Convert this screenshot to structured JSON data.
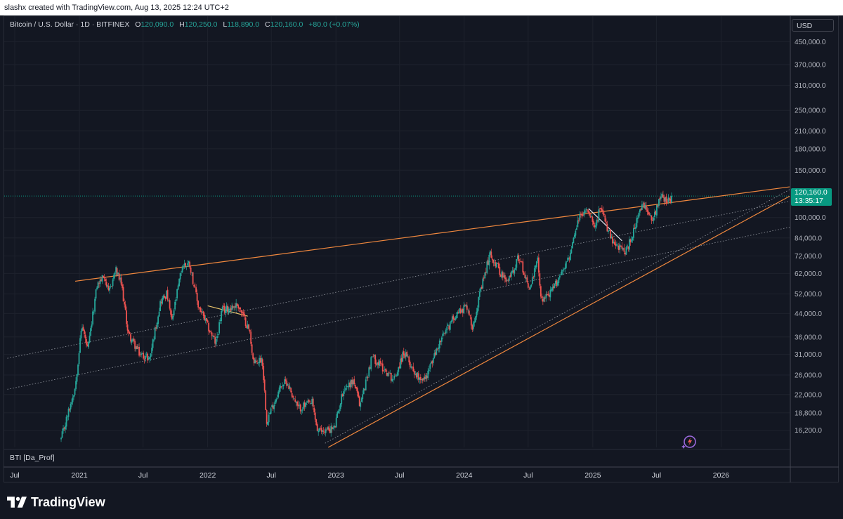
{
  "header": {
    "attribution": "slashx created with TradingView.com, Aug 13, 2025 12:24 UTC+2"
  },
  "legend": {
    "symbol": "Bitcoin / U.S. Dollar · 1D · BITFINEX",
    "open_label": "O",
    "open": "120,090.0",
    "high_label": "H",
    "high": "120,250.0",
    "low_label": "L",
    "low": "118,890.0",
    "close_label": "C",
    "close": "120,160.0",
    "change": "+80.0 (+0.07%)"
  },
  "indicator": {
    "label": "BTI [Da_Prof]"
  },
  "price_axis": {
    "currency": "USD",
    "current_price": "120,160.0",
    "countdown": "13:35:17"
  },
  "brand": {
    "name": "TradingView"
  },
  "colors": {
    "background": "#131722",
    "up": "#26a69a",
    "down": "#ef5350",
    "trendline_orange": "#f0883e",
    "trendline_yellow": "#e8c46b",
    "price_tag": "#089981",
    "dotted": "#b2b5be"
  },
  "chart_data": {
    "type": "candlestick",
    "title": "Bitcoin / U.S. Dollar · 1D · BITFINEX",
    "y_scale": "log",
    "ylim": [
      14000,
      560000
    ],
    "xlim": [
      "2020-06-01",
      "2026-07-15"
    ],
    "y_ticks": [
      {
        "value": 450000,
        "label": "450,000.0"
      },
      {
        "value": 370000,
        "label": "370,000.0"
      },
      {
        "value": 310000,
        "label": "310,000.0"
      },
      {
        "value": 250000,
        "label": "250,000.0"
      },
      {
        "value": 210000,
        "label": "210,000.0"
      },
      {
        "value": 180000,
        "label": "180,000.0"
      },
      {
        "value": 150000,
        "label": "150,000.0"
      },
      {
        "value": 100000,
        "label": "100,000.0"
      },
      {
        "value": 84000,
        "label": "84,000.0"
      },
      {
        "value": 72000,
        "label": "72,000.0"
      },
      {
        "value": 62000,
        "label": "62,000.0"
      },
      {
        "value": 52000,
        "label": "52,000.0"
      },
      {
        "value": 44000,
        "label": "44,000.0"
      },
      {
        "value": 36000,
        "label": "36,000.0"
      },
      {
        "value": 31000,
        "label": "31,000.0"
      },
      {
        "value": 26000,
        "label": "26,000.0"
      },
      {
        "value": 22000,
        "label": "22,000.0"
      },
      {
        "value": 18800,
        "label": "18,800.0"
      },
      {
        "value": 16200,
        "label": "16,200.0"
      }
    ],
    "x_ticks": [
      {
        "date": "2020-07-01",
        "label": "Jul"
      },
      {
        "date": "2021-01-01",
        "label": "2021"
      },
      {
        "date": "2021-07-01",
        "label": "Jul"
      },
      {
        "date": "2022-01-01",
        "label": "2022"
      },
      {
        "date": "2022-07-01",
        "label": "Jul"
      },
      {
        "date": "2023-01-01",
        "label": "2023"
      },
      {
        "date": "2023-07-01",
        "label": "Jul"
      },
      {
        "date": "2024-01-01",
        "label": "2024"
      },
      {
        "date": "2024-07-01",
        "label": "Jul"
      },
      {
        "date": "2025-01-01",
        "label": "2025"
      },
      {
        "date": "2025-07-01",
        "label": "Jul"
      },
      {
        "date": "2026-01-01",
        "label": "2026"
      }
    ],
    "price_path": [
      [
        "2020-11-10",
        15000
      ],
      [
        "2020-12-01",
        19000
      ],
      [
        "2020-12-20",
        23500
      ],
      [
        "2021-01-08",
        40000
      ],
      [
        "2021-01-25",
        32000
      ],
      [
        "2021-02-20",
        56000
      ],
      [
        "2021-03-13",
        61000
      ],
      [
        "2021-03-25",
        52000
      ],
      [
        "2021-04-14",
        64000
      ],
      [
        "2021-05-01",
        56000
      ],
      [
        "2021-05-20",
        37000
      ],
      [
        "2021-06-22",
        31000
      ],
      [
        "2021-07-20",
        30000
      ],
      [
        "2021-08-20",
        49000
      ],
      [
        "2021-09-07",
        52000
      ],
      [
        "2021-09-21",
        41000
      ],
      [
        "2021-10-20",
        66000
      ],
      [
        "2021-11-10",
        68000
      ],
      [
        "2021-12-05",
        47000
      ],
      [
        "2022-01-24",
        34000
      ],
      [
        "2022-02-10",
        45000
      ],
      [
        "2022-03-28",
        47500
      ],
      [
        "2022-04-30",
        38000
      ],
      [
        "2022-05-12",
        28500
      ],
      [
        "2022-06-05",
        30000
      ],
      [
        "2022-06-18",
        17600
      ],
      [
        "2022-07-30",
        24000
      ],
      [
        "2022-08-15",
        24500
      ],
      [
        "2022-09-15",
        19500
      ],
      [
        "2022-10-25",
        20500
      ],
      [
        "2022-11-10",
        16000
      ],
      [
        "2022-12-28",
        16500
      ],
      [
        "2023-01-22",
        23000
      ],
      [
        "2023-02-20",
        24800
      ],
      [
        "2023-03-10",
        20000
      ],
      [
        "2023-04-14",
        30500
      ],
      [
        "2023-06-15",
        25000
      ],
      [
        "2023-07-13",
        31500
      ],
      [
        "2023-08-18",
        26000
      ],
      [
        "2023-09-11",
        25000
      ],
      [
        "2023-10-24",
        34500
      ],
      [
        "2023-12-08",
        44000
      ],
      [
        "2024-01-10",
        47000
      ],
      [
        "2024-01-23",
        39000
      ],
      [
        "2024-03-14",
        73500
      ],
      [
        "2024-05-01",
        57000
      ],
      [
        "2024-06-05",
        71500
      ],
      [
        "2024-07-05",
        54000
      ],
      [
        "2024-07-29",
        70000
      ],
      [
        "2024-08-05",
        49500
      ],
      [
        "2024-09-06",
        53000
      ],
      [
        "2024-10-29",
        73000
      ],
      [
        "2024-11-22",
        99500
      ],
      [
        "2024-12-17",
        108000
      ],
      [
        "2025-01-10",
        93000
      ],
      [
        "2025-01-21",
        109500
      ],
      [
        "2025-02-28",
        79000
      ],
      [
        "2025-04-07",
        75000
      ],
      [
        "2025-05-22",
        111000
      ],
      [
        "2025-06-22",
        99000
      ],
      [
        "2025-07-14",
        123000
      ],
      [
        "2025-08-01",
        113000
      ],
      [
        "2025-08-13",
        120160
      ]
    ],
    "trendlines": [
      {
        "style": "solid",
        "color": "orange",
        "from": [
          "2020-12-20",
          58000
        ],
        "to": [
          "2026-07-15",
          130000
        ]
      },
      {
        "style": "solid",
        "color": "orange",
        "from": [
          "2022-12-10",
          14000
        ],
        "to": [
          "2026-07-15",
          120000
        ]
      },
      {
        "style": "dotted",
        "color": "grey",
        "from": [
          "2020-06-10",
          30000
        ],
        "to": [
          "2026-07-15",
          115000
        ]
      },
      {
        "style": "dotted",
        "color": "grey",
        "from": [
          "2020-06-10",
          23000
        ],
        "to": [
          "2026-07-15",
          92000
        ]
      },
      {
        "style": "dotted",
        "color": "grey",
        "from": [
          "2022-12-01",
          14500
        ],
        "to": [
          "2026-07-15",
          127000
        ]
      },
      {
        "style": "solid",
        "color": "yellow",
        "from": [
          "2022-01-01",
          47000
        ],
        "to": [
          "2022-04-25",
          43000
        ]
      },
      {
        "style": "solid",
        "color": "white",
        "from": [
          "2024-12-20",
          108000
        ],
        "to": [
          "2025-03-25",
          82000
        ]
      }
    ],
    "last_price": 120160
  }
}
